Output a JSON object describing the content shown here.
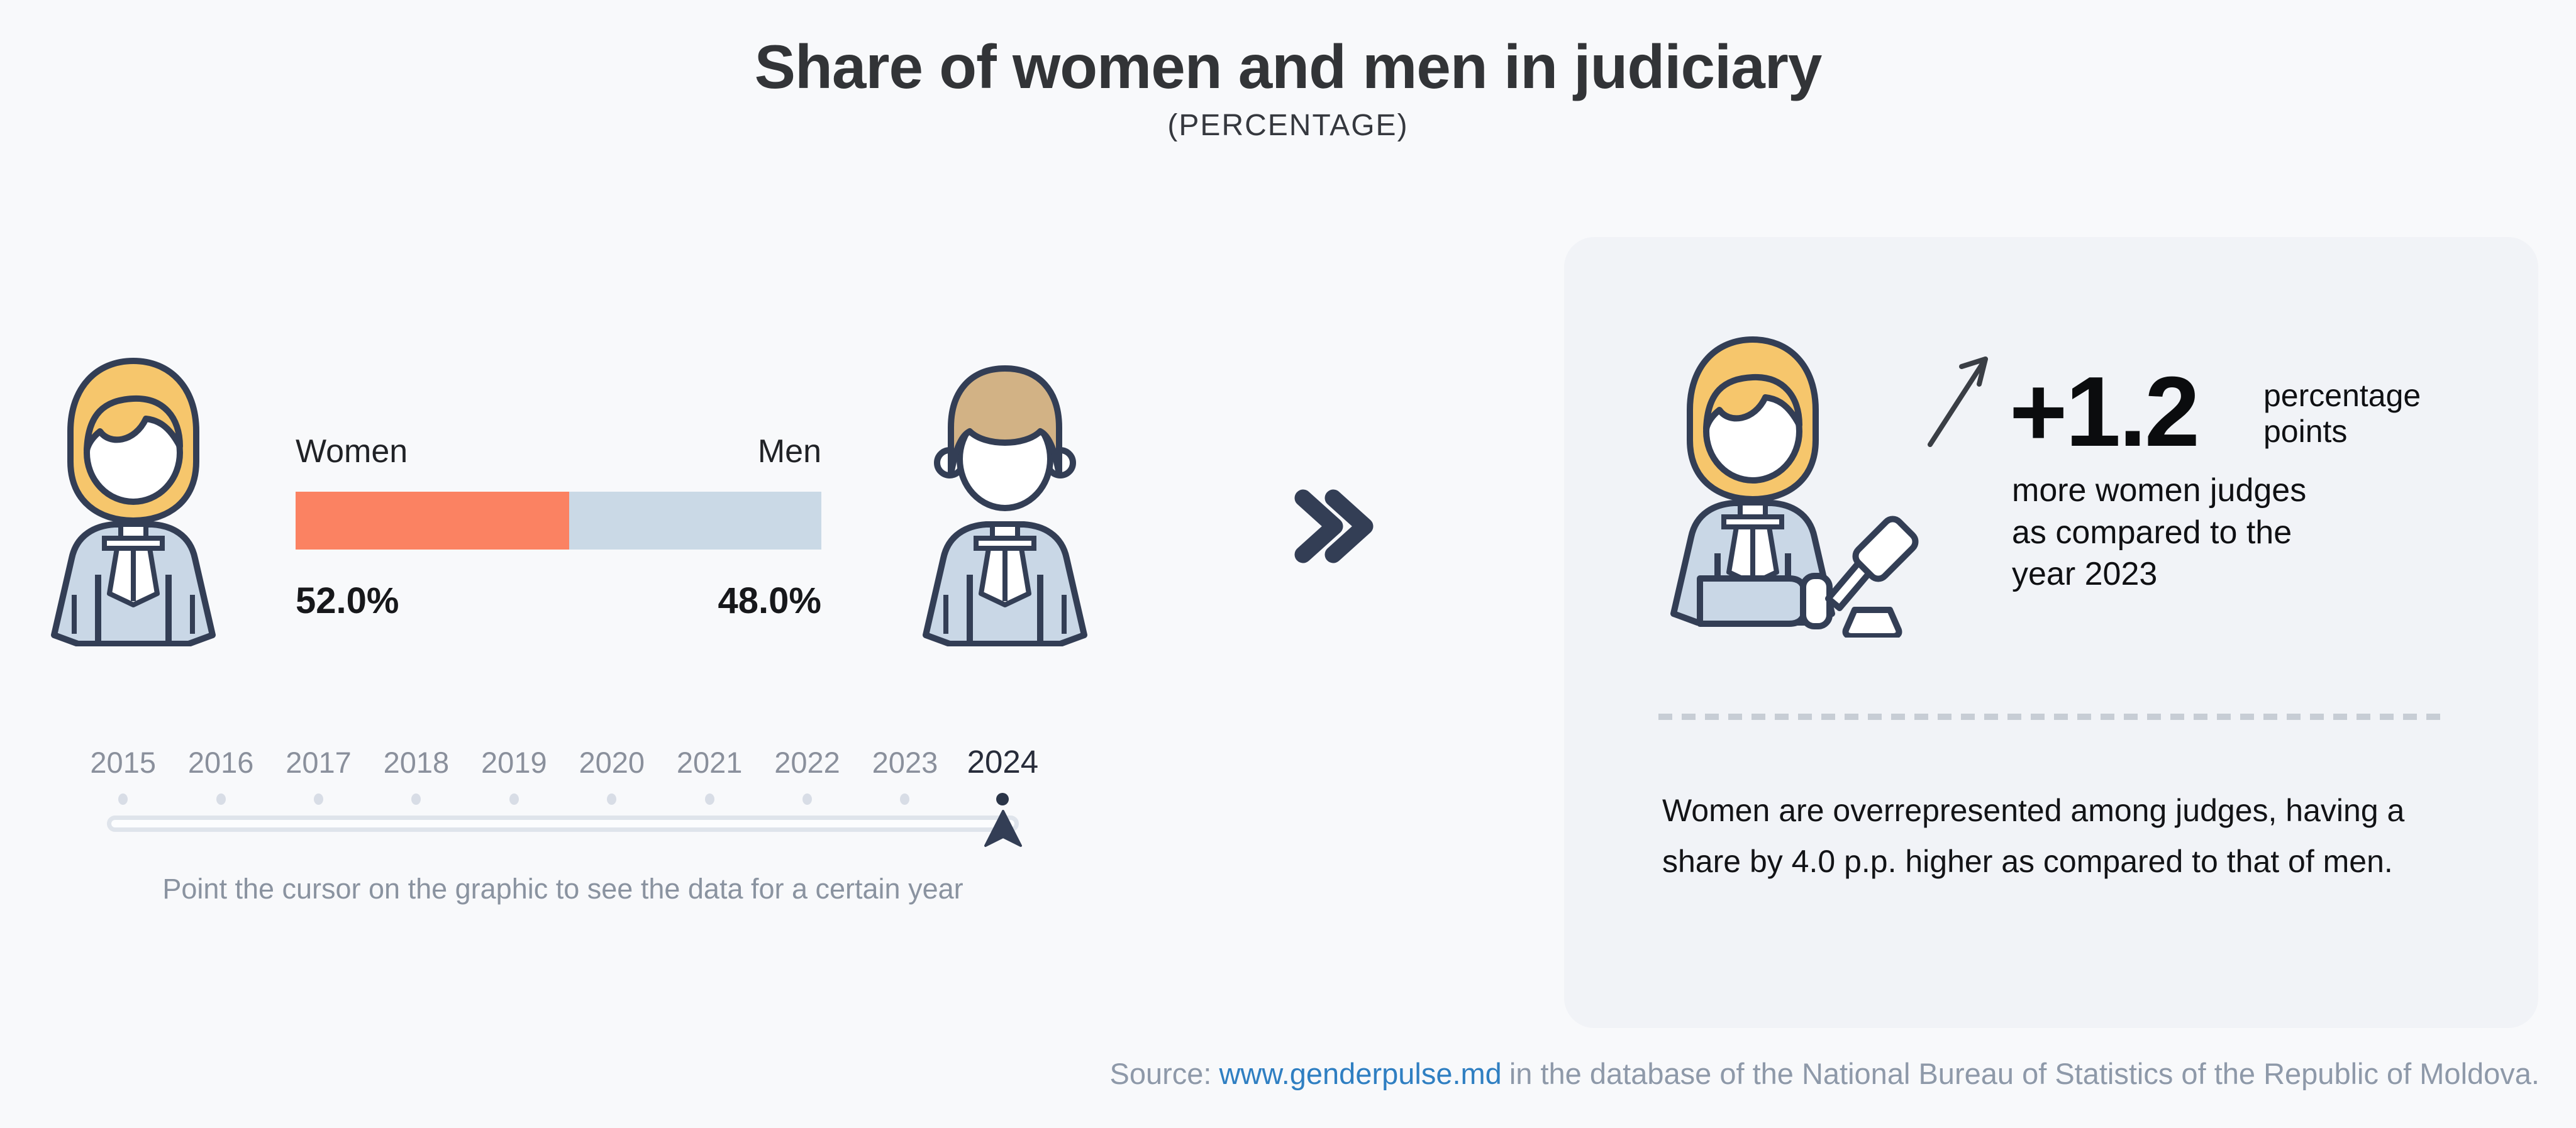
{
  "page": {
    "title": "Share of women and men in judiciary",
    "subtitle": "(PERCENTAGE)"
  },
  "chart_data": {
    "type": "bar",
    "title": "Share of women and men in judiciary",
    "unit": "percentage",
    "categories": [
      "Women",
      "Men"
    ],
    "values": [
      52.0,
      48.0
    ],
    "value_labels": [
      "52.0%",
      "48.0%"
    ],
    "selected_year": "2024",
    "timeline_years": [
      "2015",
      "2016",
      "2017",
      "2018",
      "2019",
      "2020",
      "2021",
      "2022",
      "2023",
      "2024"
    ],
    "change_vs_previous_year_pp": "+1.2",
    "gap_women_vs_men_pp": 4.0,
    "colors": {
      "women_bar": "#FB8262",
      "men_bar": "#CAD9E6",
      "outline_navy": "#333E55"
    },
    "legend_position": "labels-above-bar-ends",
    "grid": false
  },
  "gender_bar": {
    "women_label": "Women",
    "men_label": "Men",
    "women_value": "52.0%",
    "men_value": "48.0%"
  },
  "timeline": {
    "years": [
      "2015",
      "2016",
      "2017",
      "2018",
      "2019",
      "2020",
      "2021",
      "2022",
      "2023",
      "2024"
    ],
    "selected_year": "2024",
    "hint": "Point the cursor on the graphic to see the data for a certain year"
  },
  "panel": {
    "stat_value": "+1.2",
    "stat_unit": "percentage points",
    "stat_description": "more women judges as compared to the year 2023",
    "summary": "Women are overrepresented among judges, having a share by 4.0 p.p. higher as compared to that of men."
  },
  "source": {
    "prefix": "Source:",
    "link_text": "www.genderpulse.md",
    "suffix": "in the database of the National Bureau of Statistics of the Republic of Moldova."
  }
}
